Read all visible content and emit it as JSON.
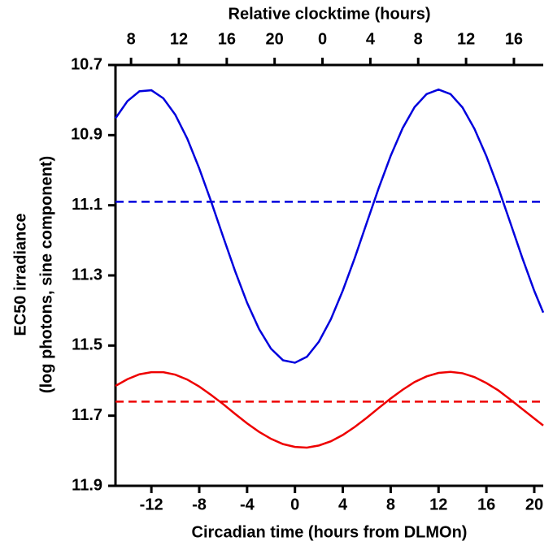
{
  "chart_data": {
    "type": "line",
    "xlabel": "Circadian time (hours from DLMOn)",
    "x2label": "Relative clocktime (hours)",
    "ylabel": [
      "EC50 irradiance",
      "(log photons, sine component)"
    ],
    "x": [
      -15,
      -14,
      -13,
      -12,
      -11,
      -10,
      -9,
      -8,
      -7,
      -6,
      -5,
      -4,
      -3,
      -2,
      -1,
      0,
      1,
      2,
      3,
      4,
      5,
      6,
      7,
      8,
      9,
      10,
      11,
      12,
      13,
      14,
      15,
      16,
      17,
      18,
      19,
      20,
      20.75
    ],
    "series": [
      {
        "color": "#0000dd",
        "values": [
          10.852,
          10.803,
          10.775,
          10.772,
          10.795,
          10.842,
          10.91,
          10.995,
          11.09,
          11.19,
          11.288,
          11.378,
          11.453,
          11.509,
          11.542,
          11.549,
          11.532,
          11.489,
          11.425,
          11.343,
          11.25,
          11.15,
          11.051,
          10.959,
          10.88,
          10.82,
          10.783,
          10.77,
          10.783,
          10.821,
          10.882,
          10.96,
          11.051,
          11.15,
          11.25,
          11.344,
          11.406
        ]
      },
      {
        "color": "#ee0000",
        "values": [
          11.615,
          11.596,
          11.582,
          11.576,
          11.576,
          11.583,
          11.597,
          11.617,
          11.641,
          11.667,
          11.695,
          11.722,
          11.746,
          11.766,
          11.781,
          11.789,
          11.791,
          11.785,
          11.773,
          11.755,
          11.732,
          11.706,
          11.678,
          11.651,
          11.626,
          11.604,
          11.588,
          11.578,
          11.575,
          11.579,
          11.59,
          11.607,
          11.628,
          11.654,
          11.681,
          11.708,
          11.728
        ]
      }
    ],
    "hlines": [
      {
        "y": 11.09,
        "color": "#0000dd"
      },
      {
        "y": 11.66,
        "color": "#ee0000"
      }
    ],
    "xlim": [
      -15,
      20.75
    ],
    "xticks": [
      -12,
      -8,
      -4,
      0,
      4,
      8,
      12,
      16,
      20
    ],
    "x2lim": [
      6.7,
      42.45
    ],
    "x2ticks": [
      8,
      12,
      16,
      20,
      {
        "value": 24,
        "label": "0"
      },
      {
        "value": 28,
        "label": "4"
      },
      {
        "value": 32,
        "label": "8"
      },
      {
        "value": 36,
        "label": "12"
      },
      {
        "value": 40,
        "label": "16"
      }
    ],
    "ylim": [
      10.7,
      11.9
    ],
    "yticks": [
      10.7,
      10.9,
      11.1,
      11.3,
      11.5,
      11.7,
      11.9
    ],
    "y_inverted": true
  }
}
